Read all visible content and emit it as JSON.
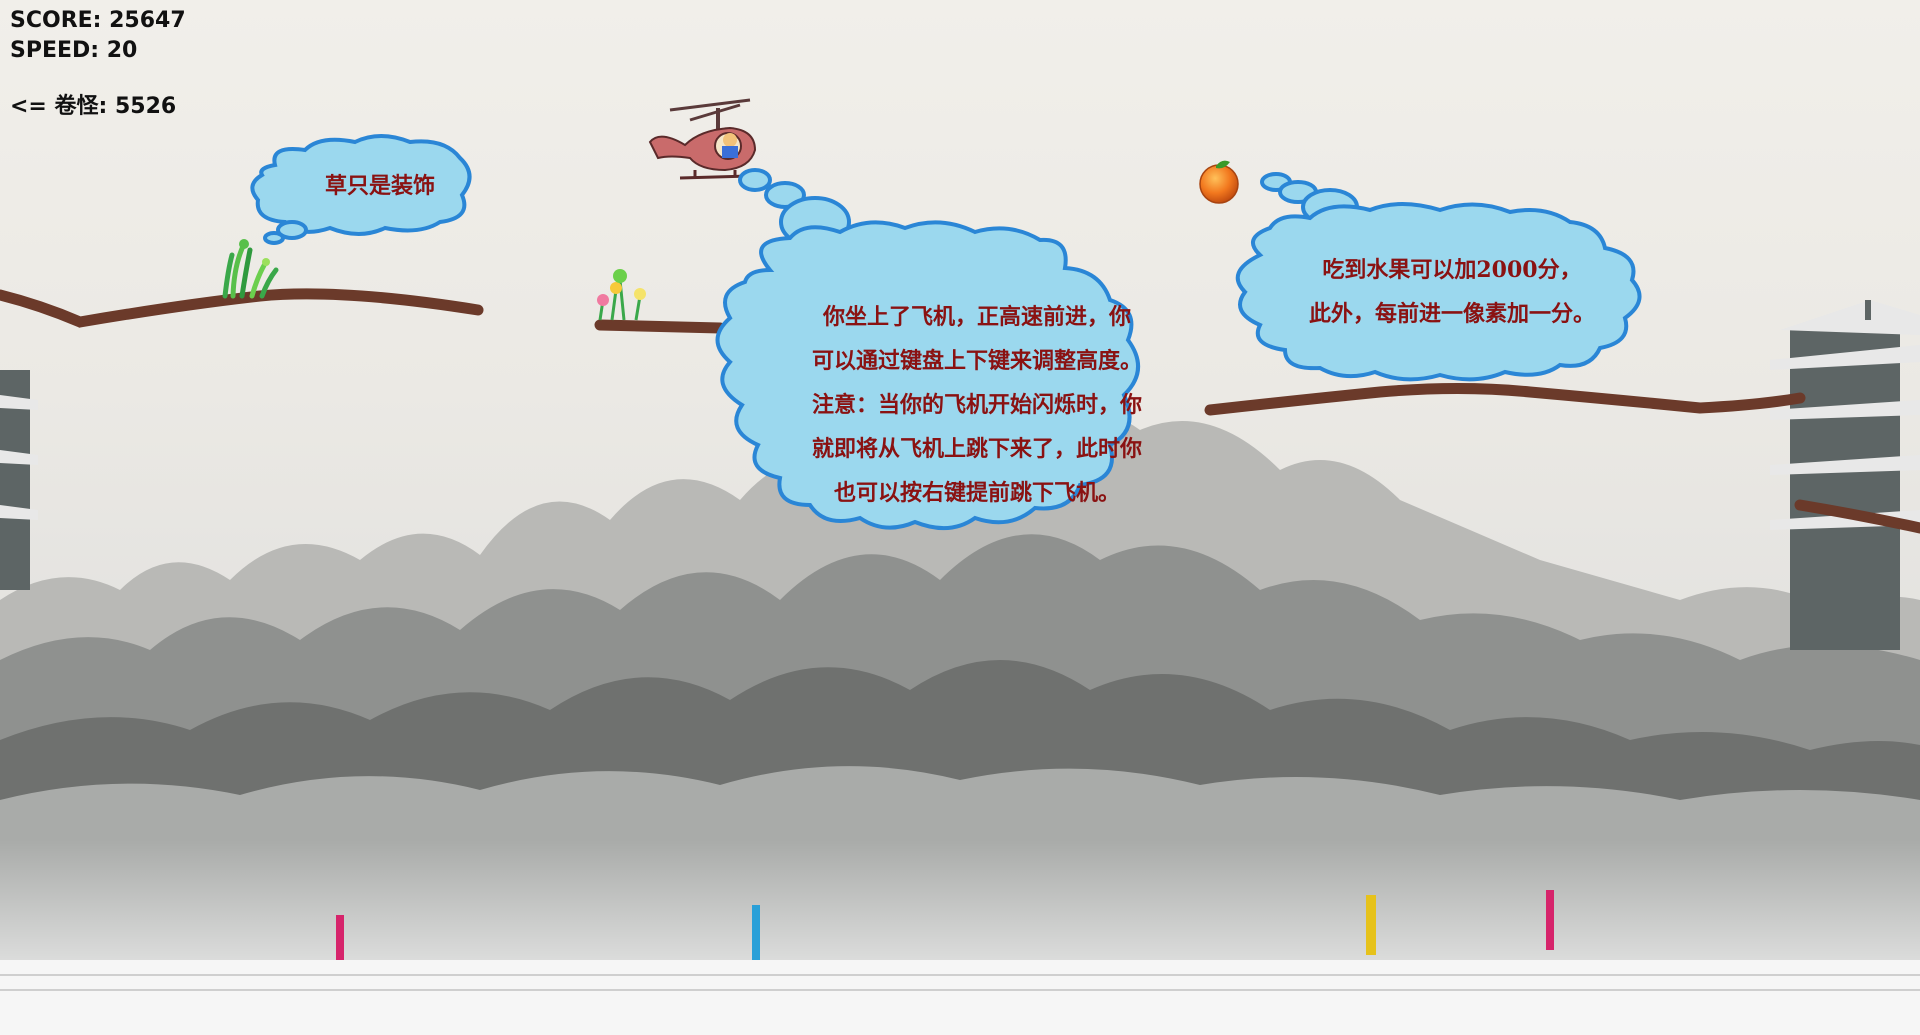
{
  "hud": {
    "score": "SCORE: 25647",
    "speed": "SPEED: 20",
    "monster": "<= 卷怪: 5526"
  },
  "bubbles": {
    "grass": "草只是装饰",
    "plane": "你坐上了飞机，正高速前进，你\n可以通过键盘上下键来调整高度。\n注意：当你的飞机开始闪烁时，你\n就即将从飞机上跳下来了，此时你\n也可以按右键提前跳下飞机。",
    "fruit": "吃到水果可以加2000分，\n此外，每前进一像素加一分。"
  },
  "colors": {
    "cloud_fill": "#9bd8ee",
    "cloud_stroke": "#2a86d6",
    "ground": "#6b3a2a",
    "text": "#8a1212"
  },
  "icons": [
    "helicopter-icon",
    "orange-fruit-icon",
    "grass-icon",
    "flowers-icon",
    "pagoda-icon"
  ]
}
